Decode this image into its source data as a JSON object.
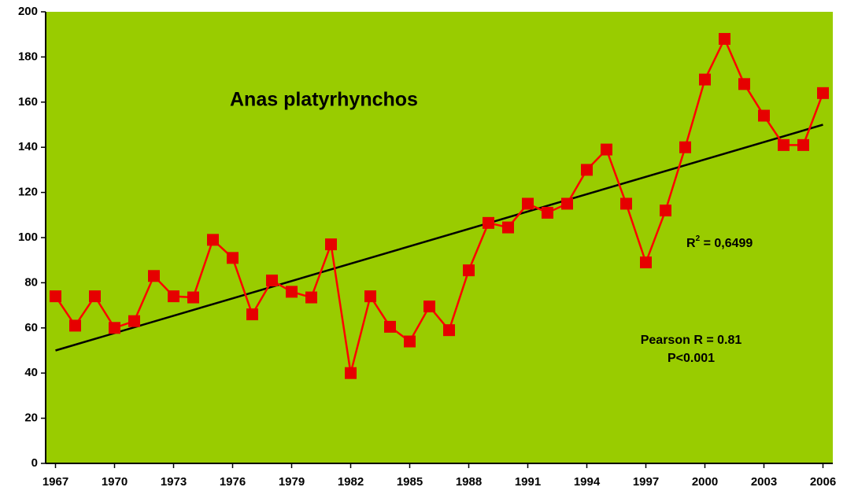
{
  "chart_data": {
    "type": "line",
    "x": [
      1967,
      1968,
      1969,
      1970,
      1971,
      1972,
      1973,
      1974,
      1975,
      1976,
      1977,
      1978,
      1979,
      1980,
      1981,
      1982,
      1983,
      1984,
      1985,
      1986,
      1987,
      1988,
      1989,
      1990,
      1991,
      1992,
      1993,
      1994,
      1995,
      1996,
      1997,
      1998,
      1999,
      2000,
      2001,
      2002,
      2003,
      2004,
      2005,
      2006
    ],
    "series": [
      {
        "color": "#ff0000",
        "values": [
          74,
          61,
          74,
          60,
          63,
          83,
          74,
          73.5,
          99,
          91,
          66,
          81,
          76,
          73.5,
          97,
          40,
          74,
          60.5,
          54,
          69.5,
          59,
          85.5,
          106.5,
          104.5,
          115,
          111,
          115,
          130,
          139,
          115,
          89,
          112,
          140,
          170,
          188,
          168,
          154,
          141,
          141,
          164
        ]
      }
    ],
    "trendline": {
      "values": [
        50,
        150
      ],
      "color": "#000000"
    },
    "xlim": [
      1966.5,
      2006.5
    ],
    "xticks": [
      1967,
      1970,
      1973,
      1976,
      1979,
      1982,
      1985,
      1988,
      1991,
      1994,
      1997,
      2000,
      2003,
      2006
    ],
    "ylim": [
      0,
      200
    ],
    "yticks": [
      0,
      20,
      40,
      60,
      80,
      100,
      120,
      140,
      160,
      180,
      200
    ],
    "background": "#99cc00",
    "annotations": {
      "species": "Anas platyrhynchos",
      "r_symbol": "R",
      "r_exponent": "2",
      "r_value": " = 0,6499",
      "pearson": "Pearson R = 0.81",
      "p": "P<0.001"
    }
  }
}
